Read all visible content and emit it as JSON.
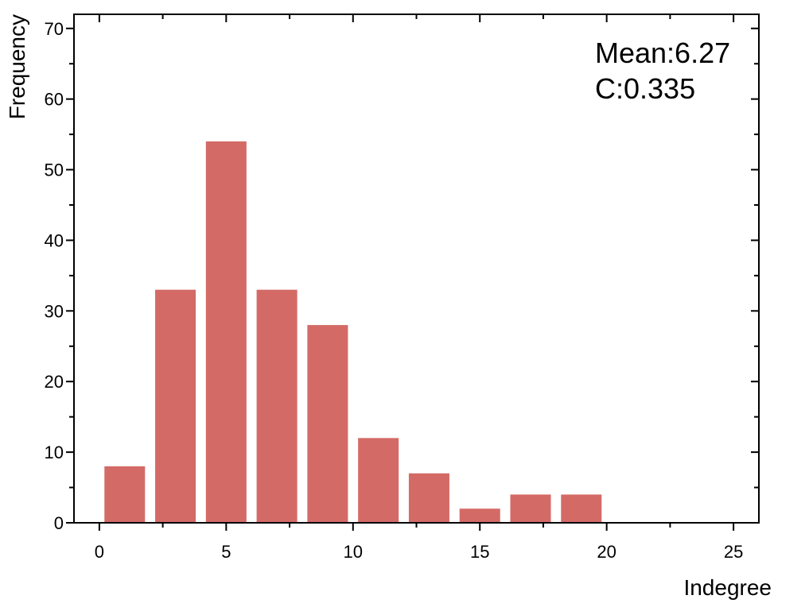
{
  "chart_data": {
    "type": "bar",
    "xlabel": "Indegree",
    "ylabel": "Frequency",
    "xlim": [
      -1,
      26
    ],
    "ylim": [
      0,
      72
    ],
    "x_ticks": [
      0,
      5,
      10,
      15,
      20,
      25
    ],
    "y_ticks": [
      0,
      10,
      20,
      30,
      40,
      50,
      60,
      70
    ],
    "bar_width": 1.6,
    "bars": [
      {
        "x": 1,
        "value": 8
      },
      {
        "x": 3,
        "value": 33
      },
      {
        "x": 5,
        "value": 54
      },
      {
        "x": 7,
        "value": 33
      },
      {
        "x": 9,
        "value": 28
      },
      {
        "x": 11,
        "value": 12
      },
      {
        "x": 13,
        "value": 7
      },
      {
        "x": 15,
        "value": 2
      },
      {
        "x": 17,
        "value": 4
      },
      {
        "x": 19,
        "value": 4
      }
    ],
    "bar_color": "#d46a66",
    "annotations": [
      "Mean:6.27",
      "C:0.335"
    ],
    "annotation_position": "top-right",
    "grid": false
  }
}
